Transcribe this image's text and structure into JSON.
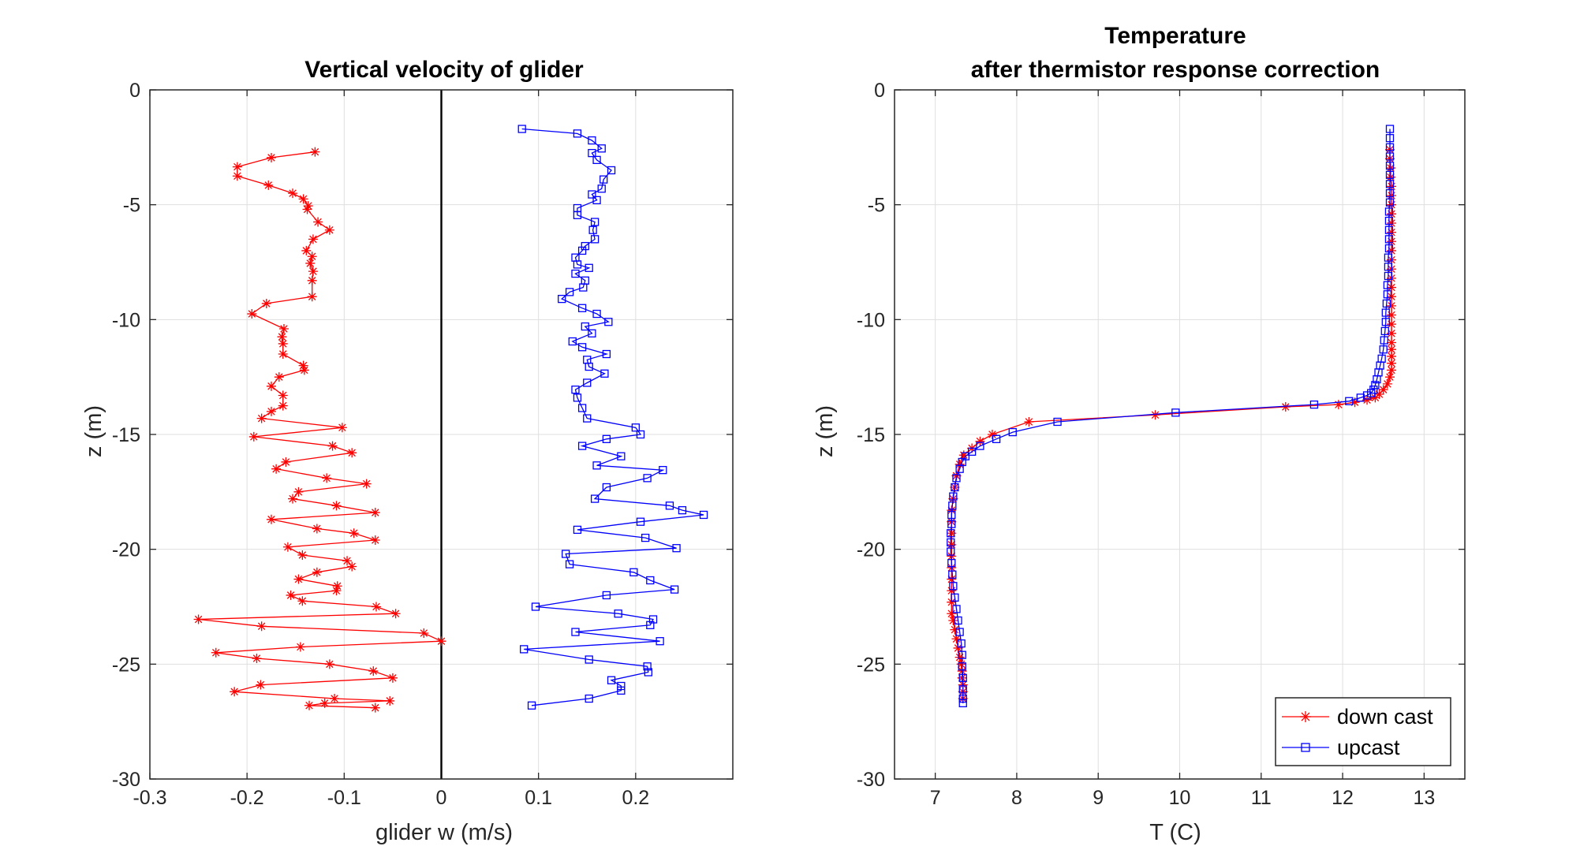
{
  "chart_data": [
    {
      "type": "line",
      "title": [
        "Vertical velocity of glider"
      ],
      "xlabel": "glider w (m/s)",
      "ylabel": "z (m)",
      "xlim": [
        -0.3,
        0.3
      ],
      "ylim": [
        -30,
        0
      ],
      "xticks": [
        "-0.3",
        "-0.2",
        "-0.1",
        "0",
        "0.1",
        "0.2"
      ],
      "yticks": [
        "0",
        "-5",
        "-10",
        "-15",
        "-20",
        "-25",
        "-30"
      ],
      "grid": true,
      "reference_line": {
        "x": 0,
        "color": "#000000"
      },
      "series": [
        {
          "color": "#ff0000",
          "marker": "asterisk",
          "x": [
            -0.13,
            -0.175,
            -0.21,
            -0.21,
            -0.178,
            -0.153,
            -0.142,
            -0.137,
            -0.138,
            -0.127,
            -0.115,
            -0.132,
            -0.139,
            -0.133,
            -0.135,
            -0.132,
            -0.133,
            -0.133,
            -0.18,
            -0.195,
            -0.162,
            -0.164,
            -0.163,
            -0.163,
            -0.142,
            -0.141,
            -0.167,
            -0.175,
            -0.163,
            -0.163,
            -0.175,
            -0.185,
            -0.102,
            -0.193,
            -0.112,
            -0.092,
            -0.16,
            -0.17,
            -0.118,
            -0.077,
            -0.147,
            -0.153,
            -0.108,
            -0.068,
            -0.175,
            -0.128,
            -0.09,
            -0.068,
            -0.158,
            -0.143,
            -0.097,
            -0.092,
            -0.128,
            -0.147,
            -0.107,
            -0.108,
            -0.155,
            -0.143,
            -0.067,
            -0.047,
            -0.25,
            -0.185,
            -0.018,
            0.0,
            -0.145,
            -0.232,
            -0.19,
            -0.115,
            -0.07,
            -0.05,
            -0.186,
            -0.213,
            -0.11,
            -0.053,
            -0.12,
            -0.136,
            -0.068
          ],
          "y": [
            -2.7,
            -2.95,
            -3.35,
            -3.75,
            -4.15,
            -4.5,
            -4.75,
            -5.05,
            -5.2,
            -5.75,
            -6.1,
            -6.5,
            -7.0,
            -7.25,
            -7.55,
            -7.9,
            -8.3,
            -9.0,
            -9.3,
            -9.75,
            -10.4,
            -10.75,
            -11.05,
            -11.5,
            -12.0,
            -12.2,
            -12.5,
            -12.9,
            -13.3,
            -13.75,
            -14.0,
            -14.3,
            -14.7,
            -15.1,
            -15.5,
            -15.8,
            -16.2,
            -16.5,
            -16.9,
            -17.15,
            -17.5,
            -17.8,
            -18.1,
            -18.4,
            -18.7,
            -19.1,
            -19.3,
            -19.6,
            -19.9,
            -20.25,
            -20.5,
            -20.75,
            -21.0,
            -21.3,
            -21.6,
            -21.8,
            -22.0,
            -22.25,
            -22.5,
            -22.8,
            -23.05,
            -23.35,
            -23.65,
            -24.0,
            -24.25,
            -24.5,
            -24.75,
            -25.0,
            -25.3,
            -25.6,
            -25.9,
            -26.2,
            -26.5,
            -26.6,
            -26.7,
            -26.8,
            -26.9
          ]
        },
        {
          "color": "#0000ff",
          "marker": "square",
          "x": [
            0.083,
            0.14,
            0.155,
            0.165,
            0.155,
            0.16,
            0.175,
            0.167,
            0.165,
            0.155,
            0.16,
            0.14,
            0.14,
            0.158,
            0.156,
            0.158,
            0.148,
            0.145,
            0.138,
            0.14,
            0.152,
            0.138,
            0.148,
            0.146,
            0.132,
            0.124,
            0.145,
            0.16,
            0.172,
            0.148,
            0.155,
            0.135,
            0.145,
            0.17,
            0.15,
            0.152,
            0.168,
            0.15,
            0.138,
            0.14,
            0.145,
            0.15,
            0.2,
            0.205,
            0.17,
            0.145,
            0.185,
            0.16,
            0.228,
            0.212,
            0.17,
            0.158,
            0.235,
            0.248,
            0.27,
            0.205,
            0.14,
            0.21,
            0.242,
            0.128,
            0.132,
            0.198,
            0.215,
            0.24,
            0.17,
            0.097,
            0.182,
            0.218,
            0.215,
            0.138,
            0.225,
            0.085,
            0.152,
            0.212,
            0.213,
            0.175,
            0.185,
            0.185,
            0.152,
            0.093
          ],
          "y": [
            -1.7,
            -1.9,
            -2.2,
            -2.55,
            -2.75,
            -3.05,
            -3.5,
            -3.9,
            -4.3,
            -4.55,
            -4.8,
            -5.15,
            -5.45,
            -5.75,
            -6.1,
            -6.5,
            -6.8,
            -7.0,
            -7.3,
            -7.6,
            -7.75,
            -8.0,
            -8.3,
            -8.6,
            -8.8,
            -9.1,
            -9.5,
            -9.75,
            -10.1,
            -10.3,
            -10.6,
            -10.95,
            -11.2,
            -11.5,
            -11.75,
            -12.05,
            -12.35,
            -12.75,
            -13.05,
            -13.4,
            -13.85,
            -14.3,
            -14.7,
            -15.0,
            -15.2,
            -15.5,
            -15.95,
            -16.35,
            -16.55,
            -16.9,
            -17.3,
            -17.8,
            -18.1,
            -18.3,
            -18.5,
            -18.8,
            -19.15,
            -19.5,
            -19.95,
            -20.2,
            -20.65,
            -21.0,
            -21.35,
            -21.75,
            -22.0,
            -22.5,
            -22.8,
            -23.05,
            -23.3,
            -23.6,
            -24.0,
            -24.35,
            -24.8,
            -25.1,
            -25.35,
            -25.7,
            -25.95,
            -26.15,
            -26.5,
            -26.8
          ]
        }
      ]
    },
    {
      "type": "line",
      "title": [
        "Temperature",
        "after thermistor response correction"
      ],
      "xlabel": "T (C)",
      "ylabel": "z (m)",
      "xlim": [
        6.5,
        13.5
      ],
      "ylim": [
        -30,
        0
      ],
      "xticks": [
        "7",
        "8",
        "9",
        "10",
        "11",
        "12",
        "13"
      ],
      "yticks": [
        "0",
        "-5",
        "-10",
        "-15",
        "-20",
        "-25",
        "-30"
      ],
      "grid": true,
      "legend": {
        "position": "bottom-right"
      },
      "series": [
        {
          "name": "down cast",
          "color": "#ff0000",
          "marker": "asterisk",
          "x": [
            12.58,
            12.58,
            12.59,
            12.59,
            12.6,
            12.6,
            12.6,
            12.6,
            12.6,
            12.6,
            12.6,
            12.6,
            12.6,
            12.6,
            12.6,
            12.6,
            12.6,
            12.6,
            12.6,
            12.6,
            12.6,
            12.6,
            12.6,
            12.6,
            12.6,
            12.6,
            12.58,
            12.55,
            12.5,
            12.45,
            12.4,
            12.3,
            12.15,
            11.95,
            11.3,
            9.7,
            8.15,
            7.7,
            7.55,
            7.45,
            7.35,
            7.3,
            7.26,
            7.24,
            7.22,
            7.2,
            7.2,
            7.2,
            7.2,
            7.2,
            7.2,
            7.2,
            7.2,
            7.2,
            7.2,
            7.22,
            7.24,
            7.26,
            7.28,
            7.3,
            7.32,
            7.33,
            7.33,
            7.34,
            7.34,
            7.34
          ],
          "y": [
            -2.6,
            -3.0,
            -3.4,
            -3.8,
            -4.2,
            -4.6,
            -5.0,
            -5.4,
            -5.8,
            -6.2,
            -6.6,
            -7.0,
            -7.4,
            -7.8,
            -8.2,
            -8.6,
            -9.0,
            -9.4,
            -9.8,
            -10.2,
            -10.6,
            -11.0,
            -11.3,
            -11.6,
            -11.9,
            -12.2,
            -12.5,
            -12.8,
            -13.05,
            -13.25,
            -13.4,
            -13.5,
            -13.6,
            -13.7,
            -13.8,
            -14.15,
            -14.45,
            -15.0,
            -15.3,
            -15.6,
            -15.9,
            -16.3,
            -16.8,
            -17.3,
            -17.8,
            -18.3,
            -18.8,
            -19.3,
            -19.8,
            -20.3,
            -20.8,
            -21.3,
            -21.8,
            -22.3,
            -22.8,
            -23.1,
            -23.5,
            -23.9,
            -24.3,
            -24.7,
            -25.0,
            -25.3,
            -25.6,
            -25.9,
            -26.2,
            -26.5
          ]
        },
        {
          "name": "upcast",
          "color": "#0000ff",
          "marker": "square",
          "x": [
            12.58,
            12.58,
            12.58,
            12.58,
            12.58,
            12.58,
            12.58,
            12.58,
            12.58,
            12.57,
            12.57,
            12.57,
            12.57,
            12.57,
            12.56,
            12.56,
            12.56,
            12.55,
            12.55,
            12.54,
            12.53,
            12.53,
            12.52,
            12.51,
            12.5,
            12.48,
            12.46,
            12.44,
            12.42,
            12.4,
            12.38,
            12.35,
            12.3,
            12.22,
            12.08,
            11.65,
            9.95,
            8.5,
            7.95,
            7.75,
            7.55,
            7.45,
            7.37,
            7.33,
            7.3,
            7.26,
            7.24,
            7.22,
            7.21,
            7.2,
            7.2,
            7.19,
            7.19,
            7.19,
            7.2,
            7.21,
            7.22,
            7.24,
            7.26,
            7.28,
            7.3,
            7.32,
            7.33,
            7.33,
            7.34,
            7.34,
            7.34,
            7.34
          ],
          "y": [
            -1.7,
            -2.1,
            -2.5,
            -2.9,
            -3.3,
            -3.7,
            -4.1,
            -4.5,
            -4.9,
            -5.3,
            -5.7,
            -6.1,
            -6.5,
            -6.9,
            -7.3,
            -7.7,
            -8.1,
            -8.5,
            -8.9,
            -9.3,
            -9.7,
            -10.1,
            -10.5,
            -10.9,
            -11.3,
            -11.7,
            -12.0,
            -12.3,
            -12.6,
            -12.85,
            -13.05,
            -13.2,
            -13.3,
            -13.4,
            -13.55,
            -13.7,
            -14.05,
            -14.45,
            -14.9,
            -15.2,
            -15.5,
            -15.75,
            -15.95,
            -16.2,
            -16.5,
            -16.9,
            -17.3,
            -17.7,
            -18.1,
            -18.5,
            -18.9,
            -19.3,
            -19.7,
            -20.1,
            -20.6,
            -21.1,
            -21.6,
            -22.1,
            -22.6,
            -23.1,
            -23.6,
            -24.1,
            -24.6,
            -25.1,
            -25.6,
            -26.1,
            -26.5,
            -26.7
          ]
        }
      ]
    }
  ]
}
